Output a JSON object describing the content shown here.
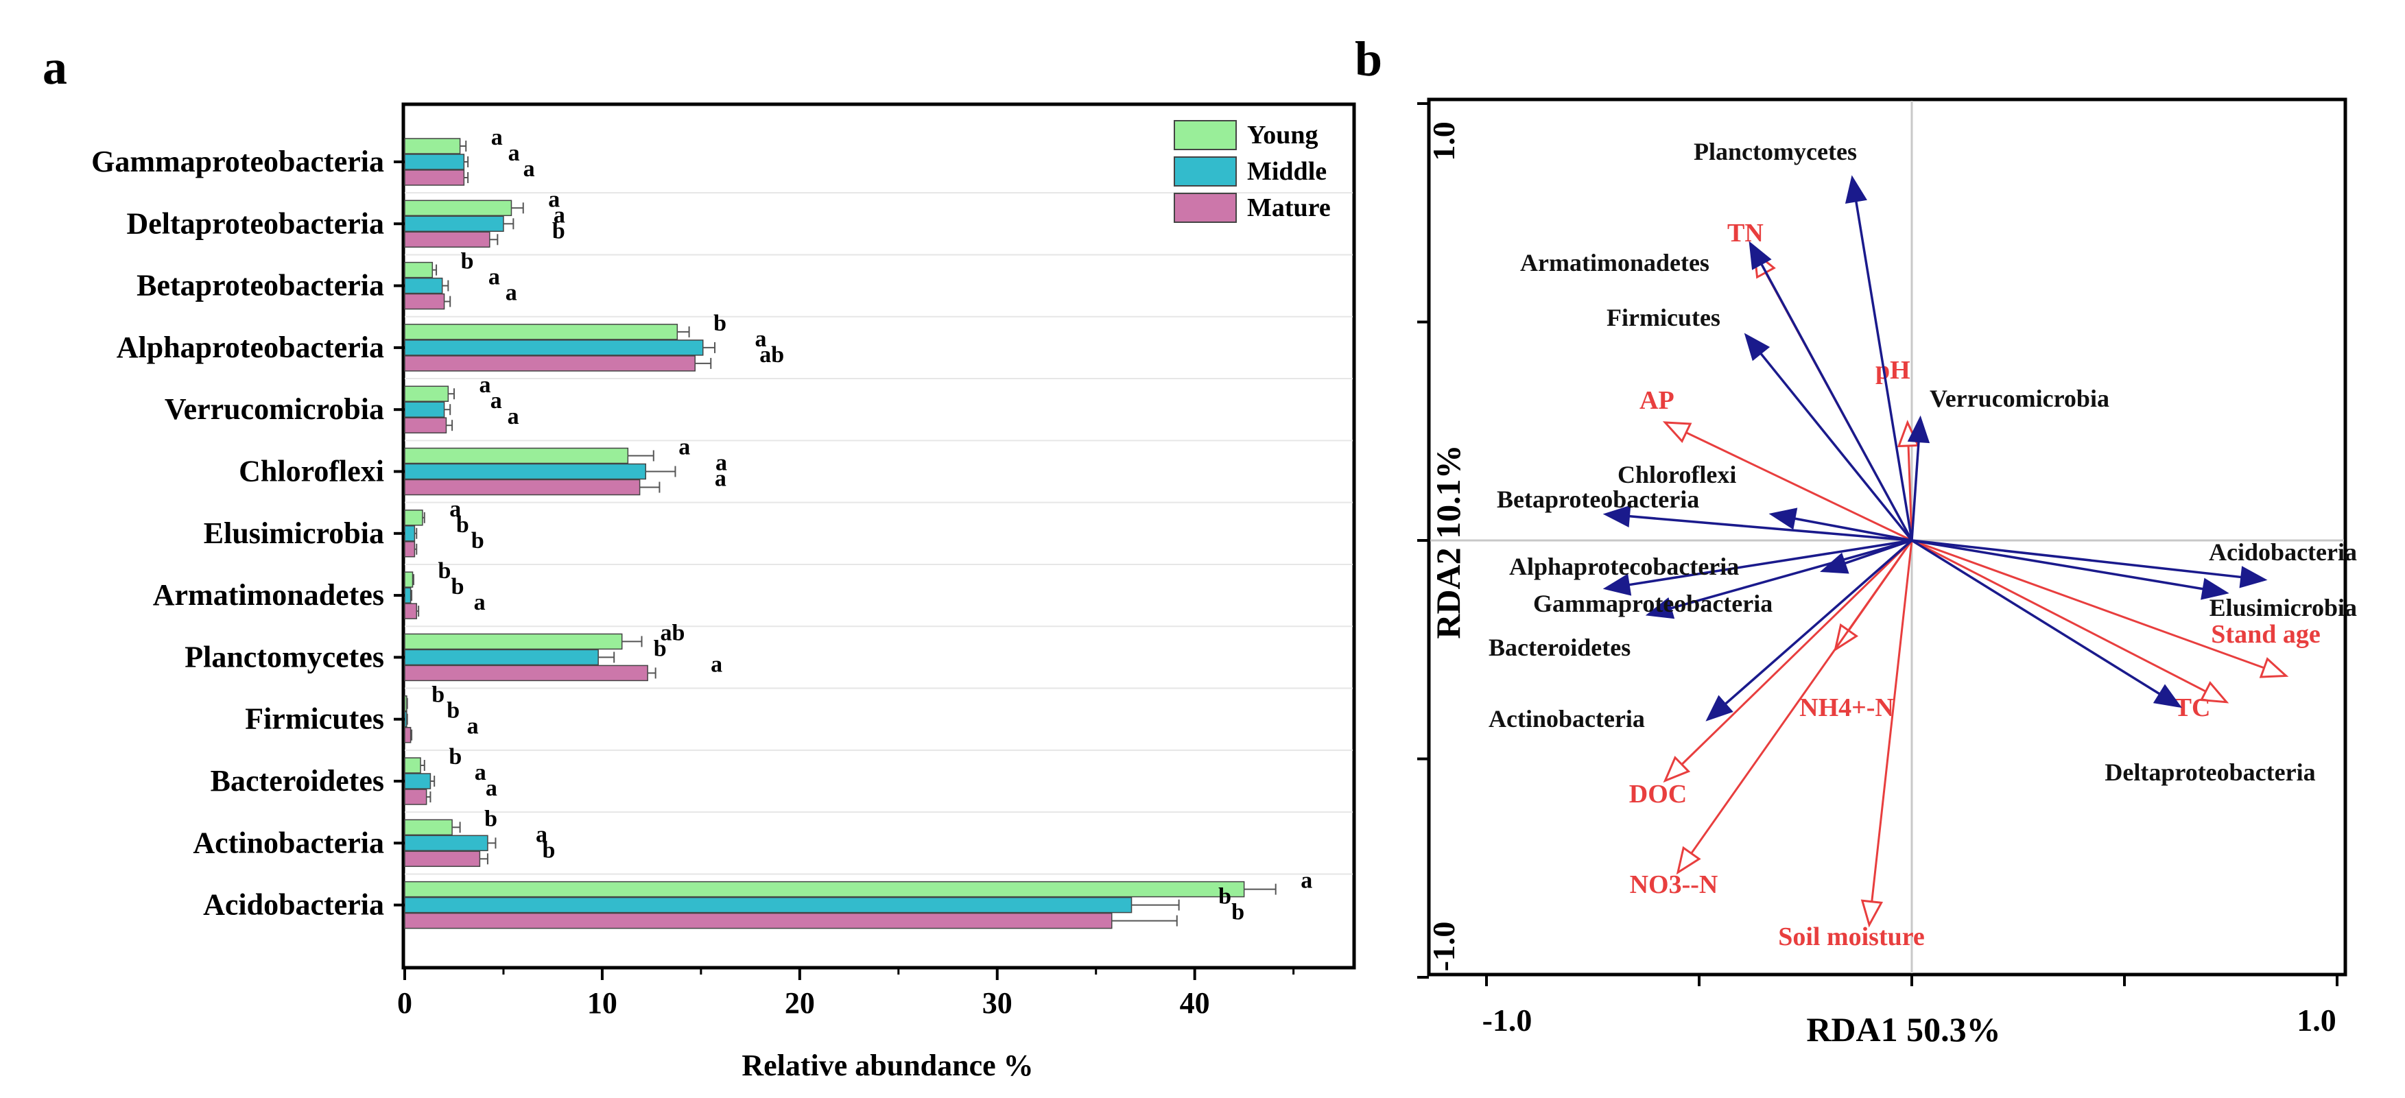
{
  "chart_data": [
    {
      "panel": "a",
      "type": "bar",
      "orientation": "horizontal",
      "xlabel": "Relative abundance %",
      "xlim": [
        0,
        48
      ],
      "xticks": [
        "0",
        "10",
        "20",
        "30",
        "40"
      ],
      "legend_placement": "top-right",
      "categories": [
        "Gammaproteobacteria",
        "Deltaproteobacteria",
        "Betaproteobacteria",
        "Alphaproteobacteria",
        "Verrucomicrobia",
        "Chloroflexi",
        "Elusimicrobia",
        "Armatimonadetes",
        "Planctomycetes",
        "Firmicutes",
        "Bacteroidetes",
        "Actinobacteria",
        "Acidobacteria"
      ],
      "series": [
        {
          "name": "Young",
          "color": "#99EE99",
          "values": [
            2.8,
            5.4,
            1.4,
            13.8,
            2.2,
            11.3,
            0.9,
            0.4,
            11.0,
            0.1,
            0.8,
            2.4,
            42.5
          ],
          "errors": [
            0.3,
            0.6,
            0.2,
            0.6,
            0.3,
            1.3,
            0.1,
            0.05,
            1.0,
            0.03,
            0.2,
            0.4,
            1.6
          ],
          "letters": [
            "a",
            "a",
            "b",
            "b",
            "a",
            "a",
            "a",
            "b",
            "ab",
            "b",
            "b",
            "b",
            "a"
          ]
        },
        {
          "name": "Middle",
          "color": "#33BBCC",
          "values": [
            3.0,
            5.0,
            1.9,
            15.1,
            2.0,
            12.2,
            0.5,
            0.3,
            9.8,
            0.1,
            1.3,
            4.2,
            36.8
          ],
          "errors": [
            0.2,
            0.5,
            0.3,
            0.6,
            0.3,
            1.5,
            0.1,
            0.05,
            0.8,
            0.03,
            0.2,
            0.4,
            2.4
          ],
          "letters": [
            "a",
            "a",
            "a",
            "a",
            "a",
            "a",
            "b",
            "b",
            "b",
            "b",
            "a",
            "a",
            "b"
          ]
        },
        {
          "name": "Mature",
          "color": "#CC77AA",
          "values": [
            3.0,
            4.3,
            2.0,
            14.7,
            2.1,
            11.9,
            0.5,
            0.6,
            12.3,
            0.3,
            1.1,
            3.8,
            35.8
          ],
          "errors": [
            0.2,
            0.4,
            0.3,
            0.8,
            0.3,
            1.0,
            0.1,
            0.1,
            0.4,
            0.05,
            0.2,
            0.4,
            3.3
          ],
          "letters": [
            "a",
            "b",
            "a",
            "ab",
            "a",
            "a",
            "b",
            "a",
            "a",
            "a",
            "a",
            "b",
            "b"
          ]
        }
      ]
    },
    {
      "panel": "b",
      "type": "scatter",
      "subtype": "biplot",
      "xlabel": "RDA1 50.3%",
      "ylabel": "RDA2 10.1%",
      "xlim": [
        -1.0,
        1.0
      ],
      "ylim": [
        -1.0,
        1.0
      ],
      "xtick_labels": [
        "-1.0",
        "1.0"
      ],
      "ytick_labels": [
        "1.0",
        "-1.0"
      ],
      "species_color": "#1A1A8C",
      "env_color": "#E83E3E",
      "species": [
        {
          "name": "Planctomycetes",
          "x": -0.14,
          "y": 0.83
        },
        {
          "name": "Armatimonadetes",
          "x": -0.38,
          "y": 0.68
        },
        {
          "name": "Firmicutes",
          "x": -0.39,
          "y": 0.47
        },
        {
          "name": "Verrucomicrobia",
          "x": 0.02,
          "y": 0.28
        },
        {
          "name": "Chloroflexi",
          "x": -0.33,
          "y": 0.06
        },
        {
          "name": "Betaproteobacteria",
          "x": -0.72,
          "y": 0.06
        },
        {
          "name": "Alphaprotecobacteria",
          "x": -0.72,
          "y": -0.11
        },
        {
          "name": "Gammaproteobacteria",
          "x": -0.62,
          "y": -0.17
        },
        {
          "name": "Bacteroidetes",
          "x": -0.21,
          "y": -0.07
        },
        {
          "name": "Actinobacteria",
          "x": -0.48,
          "y": -0.41
        },
        {
          "name": "Acidobacteria",
          "x": 0.83,
          "y": -0.09
        },
        {
          "name": "Elusimicrobia",
          "x": 0.74,
          "y": -0.12
        },
        {
          "name": "Deltaproteobacteria",
          "x": 0.63,
          "y": -0.38
        }
      ],
      "environment": [
        {
          "name": "TN",
          "x": -0.37,
          "y": 0.66
        },
        {
          "name": "pH",
          "x": -0.01,
          "y": 0.27
        },
        {
          "name": "AP",
          "x": -0.58,
          "y": 0.27
        },
        {
          "name": "Stand age",
          "x": 0.88,
          "y": -0.31
        },
        {
          "name": "TC",
          "x": 0.74,
          "y": -0.37
        },
        {
          "name": "NH4+-N",
          "x": -0.18,
          "y": -0.25
        },
        {
          "name": "DOC",
          "x": -0.58,
          "y": -0.55
        },
        {
          "name": "NO3--N",
          "x": -0.55,
          "y": -0.76
        },
        {
          "name": "Soil moisture",
          "x": -0.1,
          "y": -0.88
        }
      ]
    }
  ]
}
